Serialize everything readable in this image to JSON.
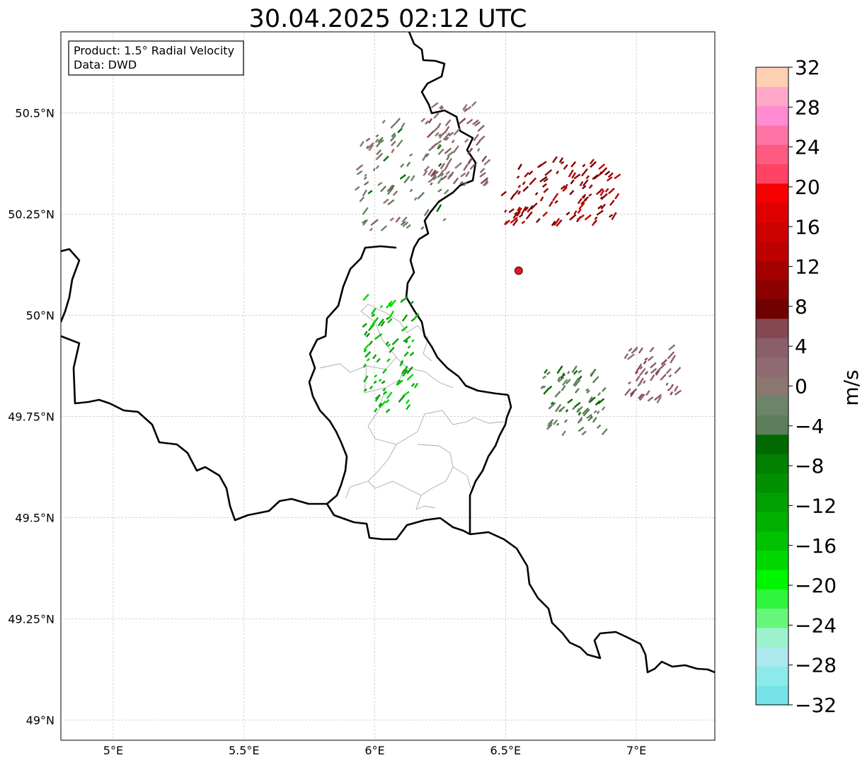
{
  "title": "30.04.2025 02:12 UTC",
  "info_box": {
    "product": "Product: 1.5° Radial Velocity",
    "data": "Data: DWD"
  },
  "map": {
    "lon_range": [
      4.8,
      7.3
    ],
    "lat_range": [
      48.95,
      50.7
    ],
    "grid": true,
    "x_ticks": [
      {
        "value": 5.0,
        "label": "5°E"
      },
      {
        "value": 5.5,
        "label": "5.5°E"
      },
      {
        "value": 6.0,
        "label": "6°E"
      },
      {
        "value": 6.5,
        "label": "6.5°E"
      },
      {
        "value": 7.0,
        "label": "7°E"
      }
    ],
    "y_ticks": [
      {
        "value": 50.5,
        "label": "50.5°N"
      },
      {
        "value": 50.25,
        "label": "50.25°N"
      },
      {
        "value": 50.0,
        "label": "50°N"
      },
      {
        "value": 49.75,
        "label": "49.75°N"
      },
      {
        "value": 49.5,
        "label": "49.5°N"
      },
      {
        "value": 49.25,
        "label": "49.25°N"
      },
      {
        "value": 49.0,
        "label": "49°N"
      }
    ],
    "radar_site": {
      "lon": 6.55,
      "lat": 50.11,
      "color": "#e8141c"
    }
  },
  "colorbar": {
    "label": "m/s",
    "range": [
      -32,
      32
    ],
    "ticks": [
      32,
      28,
      24,
      20,
      16,
      12,
      8,
      4,
      0,
      -4,
      -8,
      -12,
      -16,
      -20,
      -24,
      -28,
      -32
    ],
    "tick_labels": [
      "32",
      "28",
      "24",
      "20",
      "16",
      "12",
      "8",
      "4",
      "0",
      "−4",
      "−8",
      "−12",
      "−16",
      "−20",
      "−24",
      "−28",
      "−32"
    ],
    "colors": [
      "#75e3e6",
      "#8ceaeb",
      "#ade8ee",
      "#9cf2cd",
      "#68f57c",
      "#2ff63c",
      "#00f500",
      "#00d800",
      "#00c200",
      "#00b000",
      "#00a000",
      "#009000",
      "#007f00",
      "#006a00",
      "#5d7e5a",
      "#6c8468",
      "#8b7670",
      "#8f6a73",
      "#8a5f6a",
      "#864852",
      "#700000",
      "#8c0000",
      "#a50000",
      "#bd0000",
      "#cd0000",
      "#de0000",
      "#f50000",
      "#ff4463",
      "#ff5a82",
      "#ff74a4",
      "#ff8bd2",
      "#ffa8c8",
      "#ffcfb4"
    ]
  },
  "chart_data": {
    "type": "heatmap",
    "title": "30.04.2025 02:12 UTC",
    "variable": "1.5° Radial Velocity",
    "units": "m/s",
    "value_range": [
      -32,
      32
    ],
    "echo_clusters": [
      {
        "region": "north-west, around 6.1°E 50.35°N",
        "velocity_range": [
          -6,
          4
        ],
        "lon": 6.1,
        "lat": 50.35
      },
      {
        "region": "north, around 6.3°E 50.42°N",
        "velocity_range": [
          0,
          6
        ],
        "lon": 6.3,
        "lat": 50.42
      },
      {
        "region": "north-east, around 6.7°E 50.3°N",
        "velocity_range": [
          8,
          14
        ],
        "lon": 6.7,
        "lat": 50.3
      },
      {
        "region": "central Luxembourg, around 6.05°E 49.9°N",
        "velocity_range": [
          -18,
          -10
        ],
        "lon": 6.05,
        "lat": 49.9
      },
      {
        "region": "south-east, around 6.75°E 49.78°N",
        "velocity_range": [
          -6,
          -2
        ],
        "lon": 6.75,
        "lat": 49.78
      },
      {
        "region": "east, around 7.05°E 49.85°N",
        "velocity_range": [
          2,
          6
        ],
        "lon": 7.05,
        "lat": 49.85
      }
    ]
  }
}
